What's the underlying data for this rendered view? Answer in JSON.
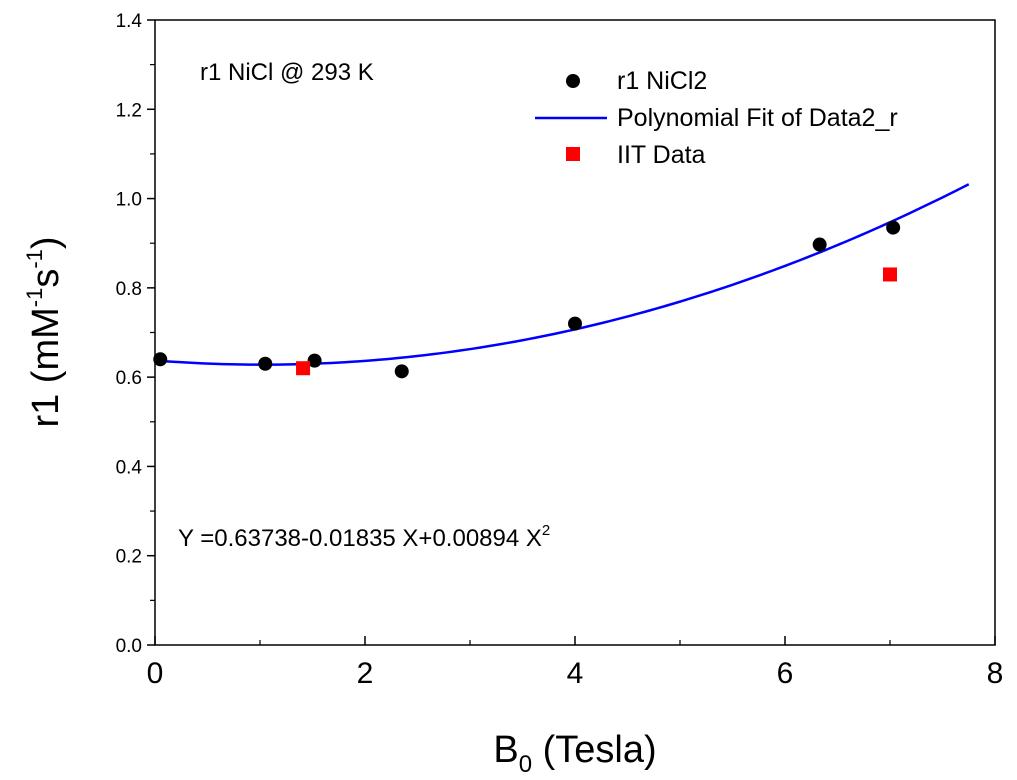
{
  "chart_data": {
    "type": "scatter",
    "xlabel": {
      "base": "B",
      "sub": "0",
      "rest": " (Tesla)"
    },
    "ylabel": {
      "prefix": "r1 (mM",
      "sup1": "-1",
      "mid": "s",
      "sup2": "-1",
      "suffix": ")"
    },
    "xlim": [
      0,
      8
    ],
    "ylim": [
      0,
      1.4
    ],
    "xticks": [
      0,
      2,
      4,
      6,
      8
    ],
    "xtick_labels": [
      "0",
      "2",
      "4",
      "6",
      "8"
    ],
    "yticks": [
      0.0,
      0.2,
      0.4,
      0.6,
      0.8,
      1.0,
      1.2,
      1.4
    ],
    "ytick_labels": [
      "0.0",
      "0.2",
      "0.4",
      "0.6",
      "0.8",
      "1.0",
      "1.2",
      "1.4"
    ],
    "grid": false,
    "legend_position": "top-right",
    "annotations": {
      "top_left": "r1 NiCl @ 293 K",
      "equation": {
        "text": "Y =0.63738-0.01835 X+0.00894 X",
        "sup": "2"
      }
    },
    "series": [
      {
        "name": "r1 NiCl2",
        "kind": "scatter",
        "marker": "circle",
        "color": "#000000",
        "x": [
          0.05,
          1.05,
          1.52,
          2.35,
          4.0,
          6.33,
          7.03
        ],
        "y": [
          0.64,
          0.63,
          0.637,
          0.613,
          0.72,
          0.897,
          0.935
        ]
      },
      {
        "name": "Polynomial Fit of Data2_r",
        "kind": "line",
        "color": "#0000ff",
        "coefficients": [
          0.63738,
          -0.01835,
          0.00894
        ],
        "x_range": [
          0,
          7.75
        ]
      },
      {
        "name": "IIT Data",
        "kind": "scatter",
        "marker": "square",
        "color": "#ff0000",
        "x": [
          1.41,
          7.0
        ],
        "y": [
          0.62,
          0.83
        ]
      }
    ]
  }
}
